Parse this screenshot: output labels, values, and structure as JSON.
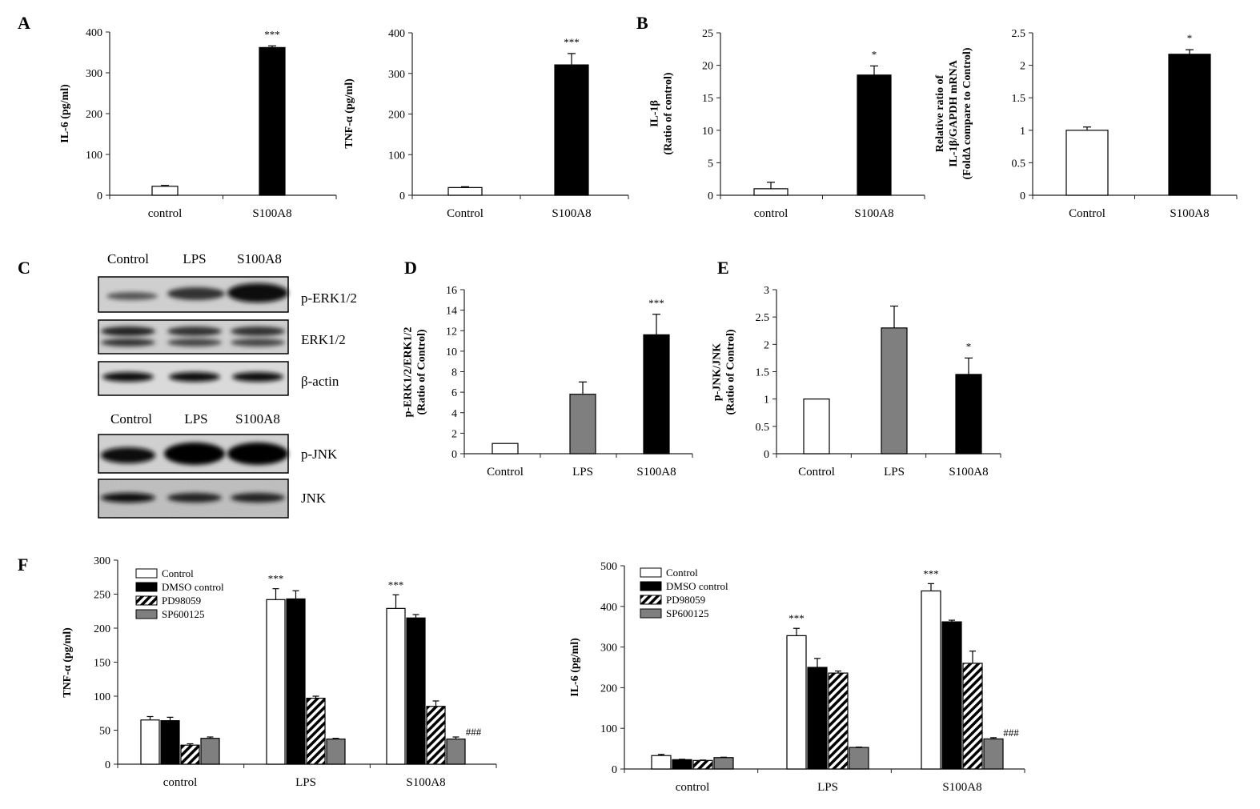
{
  "panels": {
    "A": "A",
    "B": "B",
    "C": "C",
    "D": "D",
    "E": "E",
    "F": "F"
  },
  "colors": {
    "white": "#ffffff",
    "black": "#000000",
    "gray": "#7f7f7f",
    "axis": "#222222"
  },
  "blots": {
    "top_lanes": [
      "Control",
      "LPS",
      "S100A8"
    ],
    "bottom_lanes": [
      "Control",
      "LPS",
      "S100A8"
    ],
    "bands": [
      "p-ERK1/2",
      "ERK1/2",
      "β-actin",
      "p-JNK",
      "JNK"
    ]
  },
  "chart_data": [
    {
      "id": "A1",
      "type": "bar",
      "title": "",
      "ylabel": "IL-6 (pg/ml)",
      "xlabel": "",
      "ylim": [
        0,
        400
      ],
      "yticks": [
        0,
        100,
        200,
        300,
        400
      ],
      "categories": [
        "control",
        "S100A8"
      ],
      "values": [
        22,
        362
      ],
      "errors": [
        2,
        4
      ],
      "fills": [
        "white",
        "black"
      ],
      "sig": [
        "",
        "***"
      ]
    },
    {
      "id": "A2",
      "type": "bar",
      "title": "",
      "ylabel": "TNF-α (pg/ml)",
      "xlabel": "",
      "ylim": [
        0,
        400
      ],
      "yticks": [
        0,
        100,
        200,
        300,
        400
      ],
      "categories": [
        "Control",
        "S100A8"
      ],
      "values": [
        19,
        321
      ],
      "errors": [
        2,
        28
      ],
      "fills": [
        "white",
        "black"
      ],
      "sig": [
        "",
        "***"
      ]
    },
    {
      "id": "B1",
      "type": "bar",
      "title": "",
      "ylabel": "IL-1β",
      "ylabel2": "(Ratio of control)",
      "xlabel": "",
      "ylim": [
        0,
        25
      ],
      "yticks": [
        0,
        5,
        10,
        15,
        20,
        25
      ],
      "categories": [
        "control",
        "S100A8"
      ],
      "values": [
        1,
        18.5
      ],
      "errors": [
        1,
        1.4
      ],
      "fills": [
        "white",
        "black"
      ],
      "sig": [
        "",
        "*"
      ]
    },
    {
      "id": "B2",
      "type": "bar",
      "title": "",
      "ylabel": "Relative ratio of",
      "ylabel2": "IL-1β/GAPDH mRNA",
      "ylabel3": "(FoldΔ compare to Control)",
      "xlabel": "",
      "ylim": [
        0,
        2.5
      ],
      "yticks": [
        0,
        0.5,
        1,
        1.5,
        2,
        2.5
      ],
      "categories": [
        "Control",
        "S100A8"
      ],
      "values": [
        1,
        2.17
      ],
      "errors": [
        0.05,
        0.07
      ],
      "fills": [
        "white",
        "black"
      ],
      "sig": [
        "",
        "*"
      ]
    },
    {
      "id": "D",
      "type": "bar",
      "title": "",
      "ylabel": "p-ERK1/2/ERK1/2",
      "ylabel2": "(Ratio of Control)",
      "xlabel": "",
      "ylim": [
        0,
        16
      ],
      "yticks": [
        0,
        2,
        4,
        6,
        8,
        10,
        12,
        14,
        16
      ],
      "categories": [
        "Control",
        "LPS",
        "S100A8"
      ],
      "values": [
        1,
        5.8,
        11.6
      ],
      "errors": [
        0,
        1.2,
        2.0
      ],
      "fills": [
        "white",
        "gray",
        "black"
      ],
      "sig": [
        "",
        "",
        "***"
      ]
    },
    {
      "id": "E",
      "type": "bar",
      "title": "",
      "ylabel": "p-JNK/JNK",
      "ylabel2": "(Ratio of Control)",
      "xlabel": "",
      "ylim": [
        0,
        3
      ],
      "yticks": [
        0,
        0.5,
        1,
        1.5,
        2,
        2.5,
        3
      ],
      "categories": [
        "Control",
        "LPS",
        "S100A8"
      ],
      "values": [
        1,
        2.3,
        1.45
      ],
      "errors": [
        0,
        0.4,
        0.3
      ],
      "fills": [
        "white",
        "gray",
        "black"
      ],
      "sig": [
        "",
        "",
        "*"
      ]
    },
    {
      "id": "F1",
      "type": "bar",
      "title": "",
      "ylabel": "TNF-α (pg/ml)",
      "xlabel": "",
      "ylim": [
        0,
        300
      ],
      "yticks": [
        0,
        50,
        100,
        150,
        200,
        250,
        300
      ],
      "categories": [
        "control",
        "LPS",
        "S100A8"
      ],
      "legend": "top-left",
      "series": [
        {
          "name": "Control",
          "fill": "white",
          "values": [
            65,
            242,
            229
          ],
          "errors": [
            5,
            16,
            20
          ],
          "sig": [
            "",
            "***",
            "***"
          ]
        },
        {
          "name": "DMSO control",
          "fill": "black",
          "values": [
            64,
            243,
            215
          ],
          "errors": [
            5,
            12,
            5
          ],
          "sig": [
            "",
            "",
            ""
          ]
        },
        {
          "name": "PD98059",
          "fill": "hatch",
          "values": [
            28,
            97,
            85
          ],
          "errors": [
            2,
            3,
            8
          ],
          "sig": [
            "",
            "",
            ""
          ]
        },
        {
          "name": "SP600125",
          "fill": "gray",
          "values": [
            38,
            37,
            37
          ],
          "errors": [
            2,
            1,
            3
          ],
          "sig": [
            "",
            "",
            "###"
          ]
        }
      ]
    },
    {
      "id": "F2",
      "type": "bar",
      "title": "",
      "ylabel": "IL-6 (pg/ml)",
      "xlabel": "",
      "ylim": [
        0,
        500
      ],
      "yticks": [
        0,
        100,
        200,
        300,
        400,
        500
      ],
      "categories": [
        "control",
        "LPS",
        "S100A8"
      ],
      "legend": "top-left",
      "series": [
        {
          "name": "Control",
          "fill": "white",
          "values": [
            33,
            328,
            438
          ],
          "errors": [
            3,
            18,
            18
          ],
          "sig": [
            "",
            "***",
            "***"
          ]
        },
        {
          "name": "DMSO control",
          "fill": "black",
          "values": [
            23,
            250,
            362
          ],
          "errors": [
            1,
            22,
            4
          ],
          "sig": [
            "",
            "",
            ""
          ]
        },
        {
          "name": "PD98059",
          "fill": "hatch",
          "values": [
            21,
            236,
            260
          ],
          "errors": [
            1,
            5,
            30
          ],
          "sig": [
            "",
            "",
            ""
          ]
        },
        {
          "name": "SP600125",
          "fill": "gray",
          "values": [
            28,
            53,
            74
          ],
          "errors": [
            1,
            1,
            3
          ],
          "sig": [
            "",
            "",
            "###"
          ]
        }
      ]
    }
  ]
}
